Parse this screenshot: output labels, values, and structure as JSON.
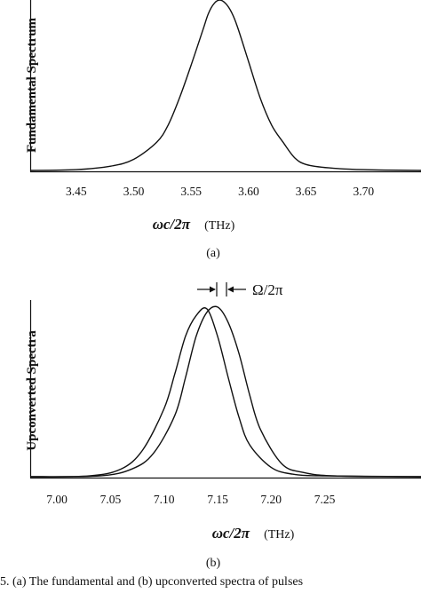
{
  "caption": "5.   (a) The fundamental and (b) upconverted spectra of pulses",
  "chart_data": [
    {
      "type": "line",
      "panel": "(a)",
      "ylabel": "Fundamental Spectrum",
      "xlabel": "ωc/2π",
      "xlabel_unit": "(THz)",
      "xlim": [
        3.41,
        3.75
      ],
      "ylim": [
        0,
        1
      ],
      "xticks": [
        3.45,
        3.5,
        3.55,
        3.6,
        3.65,
        3.7
      ],
      "xtick_labels": [
        "3.45",
        "3.50",
        "3.55",
        "3.60",
        "3.65",
        "3.70"
      ],
      "grid": false,
      "series": [
        {
          "x": [
            3.41,
            3.45,
            3.48,
            3.5,
            3.52,
            3.53,
            3.54,
            3.55,
            3.56,
            3.565,
            3.57,
            3.575,
            3.58,
            3.585,
            3.59,
            3.6,
            3.61,
            3.62,
            3.63,
            3.64,
            3.65,
            3.67,
            3.7,
            3.75
          ],
          "y": [
            0.005,
            0.01,
            0.03,
            0.07,
            0.17,
            0.27,
            0.43,
            0.62,
            0.82,
            0.92,
            0.98,
            1.0,
            0.98,
            0.93,
            0.85,
            0.64,
            0.43,
            0.27,
            0.17,
            0.08,
            0.04,
            0.02,
            0.01,
            0.005
          ]
        }
      ]
    },
    {
      "type": "line",
      "panel": "(b)",
      "ylabel": "Upconverted Spectra",
      "xlabel": "ωc/2π",
      "xlabel_unit": "(THz)",
      "annotation": "Ω/2π",
      "xlim": [
        6.975,
        7.34
      ],
      "ylim": [
        0,
        1
      ],
      "xticks": [
        7.0,
        7.05,
        7.1,
        7.15,
        7.2,
        7.25
      ],
      "xtick_labels": [
        "7.00",
        "7.05",
        "7.10",
        "7.15",
        "7.20",
        "7.25"
      ],
      "grid": false,
      "series": [
        {
          "x": [
            6.975,
            7.03,
            7.06,
            7.08,
            7.1,
            7.11,
            7.12,
            7.13,
            7.14,
            7.15,
            7.16,
            7.17,
            7.18,
            7.2,
            7.22,
            7.25,
            7.34
          ],
          "y": [
            0.005,
            0.01,
            0.05,
            0.16,
            0.4,
            0.6,
            0.82,
            0.94,
            0.98,
            0.82,
            0.58,
            0.35,
            0.19,
            0.06,
            0.02,
            0.01,
            0.005
          ]
        },
        {
          "x": [
            6.975,
            7.04,
            7.07,
            7.09,
            7.11,
            7.12,
            7.13,
            7.14,
            7.15,
            7.16,
            7.17,
            7.18,
            7.19,
            7.21,
            7.23,
            7.26,
            7.34
          ],
          "y": [
            0.005,
            0.01,
            0.05,
            0.14,
            0.36,
            0.58,
            0.82,
            0.96,
            0.99,
            0.9,
            0.72,
            0.48,
            0.28,
            0.08,
            0.03,
            0.01,
            0.005
          ]
        }
      ]
    }
  ]
}
